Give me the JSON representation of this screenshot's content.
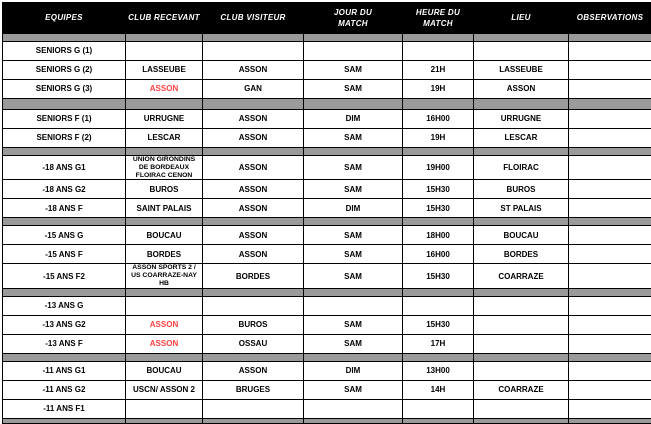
{
  "colors": {
    "header_bg": "#000000",
    "header_text": "#ffffff",
    "separator_gray": "#9a9a9a",
    "highlight_red": "#ff4242",
    "border": "#000000"
  },
  "table": {
    "columns": [
      "EQUIPES",
      "CLUB RECEVANT",
      "CLUB VISITEUR",
      "JOUR DU\nMATCH",
      "HEURE DU\nMATCH",
      "LIEU",
      "OBSERVATIONS"
    ],
    "rows": [
      {
        "kind": "spacer",
        "variant": "top"
      },
      {
        "kind": "data",
        "equipe": "SENIORS G (1)",
        "recevant": "",
        "visiteur": "",
        "jour": "",
        "heure": "",
        "lieu": "",
        "obs": ""
      },
      {
        "kind": "data",
        "equipe": "SENIORS G (2)",
        "recevant": "LASSEUBE",
        "visiteur": "ASSON",
        "jour": "SAM",
        "heure": "21H",
        "lieu": "LASSEUBE",
        "obs": ""
      },
      {
        "kind": "data",
        "equipe": "SENIORS G (3)",
        "recevant": "ASSON",
        "recevant_red": true,
        "visiteur": "GAN",
        "jour": "SAM",
        "heure": "19H",
        "lieu": "ASSON",
        "obs": ""
      },
      {
        "kind": "spacer",
        "variant": "large"
      },
      {
        "kind": "data",
        "equipe": "SENIORS F (1)",
        "recevant": "URRUGNE",
        "visiteur": "ASSON",
        "jour": "DIM",
        "heure": "16H00",
        "lieu": "URRUGNE",
        "obs": ""
      },
      {
        "kind": "data",
        "equipe": "SENIORS F (2)",
        "recevant": "LESCAR",
        "visiteur": "ASSON",
        "jour": "SAM",
        "heure": "19H",
        "lieu": "LESCAR",
        "obs": ""
      },
      {
        "kind": "spacer",
        "variant": "thin"
      },
      {
        "kind": "data",
        "equipe": "-18 ANS G1",
        "recevant": "UNION GIRONDINS DE BORDEAUX FLOIRAC CENON",
        "visiteur": "ASSON",
        "jour": "SAM",
        "heure": "19H00",
        "lieu": "FLOIRAC",
        "obs": ""
      },
      {
        "kind": "data",
        "equipe": "-18 ANS G2",
        "recevant": "BUROS",
        "visiteur": "ASSON",
        "jour": "SAM",
        "heure": "15H30",
        "lieu": "BUROS",
        "obs": ""
      },
      {
        "kind": "data",
        "equipe": "-18 ANS F",
        "recevant": "SAINT PALAIS",
        "visiteur": "ASSON",
        "jour": "DIM",
        "heure": "15H30",
        "lieu": "ST PALAIS",
        "obs": ""
      },
      {
        "kind": "spacer",
        "variant": "thin"
      },
      {
        "kind": "data",
        "equipe": "-15 ANS G",
        "recevant": "BOUCAU",
        "visiteur": "ASSON",
        "jour": "SAM",
        "heure": "18H00",
        "lieu": "BOUCAU",
        "obs": ""
      },
      {
        "kind": "data",
        "equipe": "-15 ANS F",
        "recevant": "BORDES",
        "visiteur": "ASSON",
        "jour": "SAM",
        "heure": "16H00",
        "lieu": "BORDES",
        "obs": ""
      },
      {
        "kind": "data",
        "equipe": "-15 ANS F2",
        "recevant": "ASSON SPORTS 2 / US COARRAZE-NAY HB",
        "visiteur": "BORDES",
        "jour": "SAM",
        "heure": "15H30",
        "lieu": "COARRAZE",
        "obs": ""
      },
      {
        "kind": "spacer",
        "variant": "thin"
      },
      {
        "kind": "data",
        "equipe": "-13 ANS G",
        "recevant": "",
        "visiteur": "",
        "jour": "",
        "heure": "",
        "lieu": "",
        "obs": ""
      },
      {
        "kind": "data",
        "equipe": "-13 ANS G2",
        "recevant": "ASSON",
        "recevant_red": true,
        "visiteur": "BUROS",
        "jour": "SAM",
        "heure": "15H30",
        "lieu": "",
        "obs": ""
      },
      {
        "kind": "data",
        "equipe": "-13 ANS F",
        "recevant": "ASSON",
        "recevant_red": true,
        "visiteur": "OSSAU",
        "jour": "SAM",
        "heure": "17H",
        "lieu": "",
        "obs": ""
      },
      {
        "kind": "spacer",
        "variant": "thin"
      },
      {
        "kind": "data",
        "equipe": "-11 ANS G1",
        "recevant": "BOUCAU",
        "visiteur": "ASSON",
        "jour": "DIM",
        "heure": "13H00",
        "lieu": "",
        "obs": ""
      },
      {
        "kind": "data",
        "equipe": "-11 ANS G2",
        "recevant": "USCN/ ASSON 2",
        "visiteur": "BRUGES",
        "jour": "SAM",
        "heure": "14H",
        "lieu": "COARRAZE",
        "obs": ""
      },
      {
        "kind": "data",
        "equipe": "-11 ANS F1",
        "recevant": "",
        "visiteur": "",
        "jour": "",
        "heure": "",
        "lieu": "",
        "obs": ""
      },
      {
        "kind": "spacer",
        "variant": "bottom"
      }
    ]
  }
}
